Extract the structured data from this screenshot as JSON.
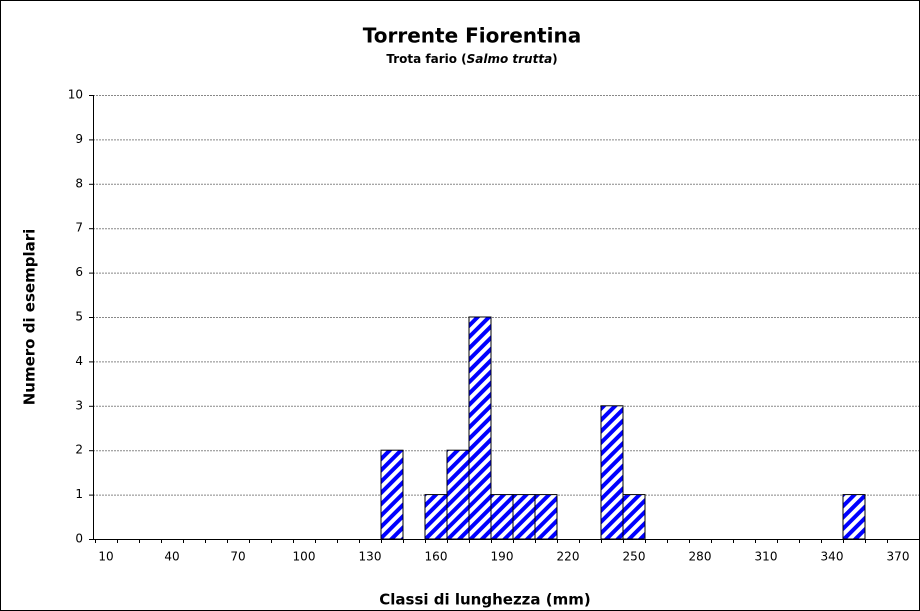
{
  "chart_data": {
    "type": "bar",
    "title": "Torrente Fiorentina",
    "subtitle": [
      "Trota fario (",
      "Salmo trutta",
      ")"
    ],
    "x_label": "Classi di lunghezza (mm)",
    "y_label": "Numero di esemplari",
    "categories": [
      10,
      null,
      null,
      40,
      null,
      null,
      70,
      null,
      null,
      100,
      null,
      null,
      130,
      null,
      null,
      160,
      null,
      null,
      190,
      null,
      null,
      220,
      null,
      null,
      250,
      null,
      null,
      280,
      null,
      null,
      310,
      null,
      null,
      340,
      null,
      null,
      370
    ],
    "values": [
      0,
      0,
      0,
      0,
      0,
      0,
      0,
      0,
      0,
      0,
      0,
      0,
      0,
      2,
      0,
      1,
      2,
      5,
      1,
      1,
      1,
      0,
      0,
      3,
      1,
      0,
      0,
      0,
      0,
      0,
      0,
      0,
      0,
      0,
      1,
      0,
      0
    ],
    "color": "#0000ff",
    "ylim": [
      0,
      10
    ],
    "yticks": [
      0,
      1,
      2,
      3,
      4,
      5,
      6,
      7,
      8,
      9,
      10
    ],
    "grid": true
  }
}
